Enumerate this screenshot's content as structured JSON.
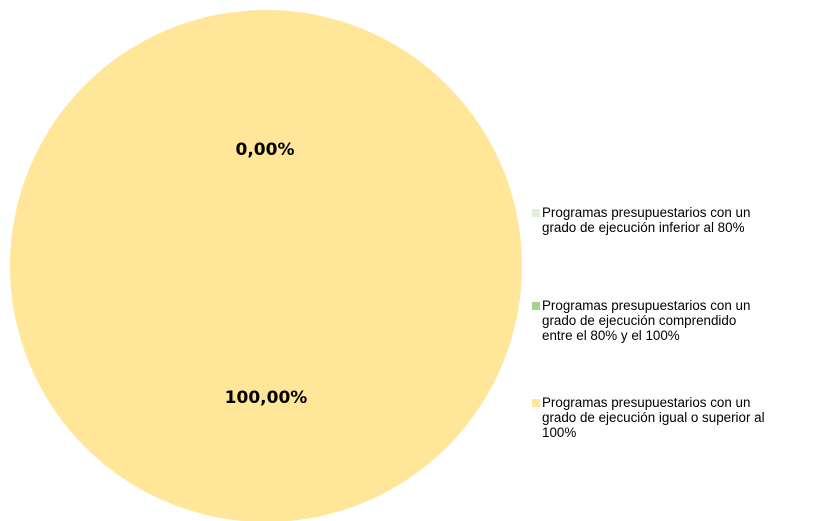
{
  "chart_data": {
    "type": "pie",
    "title": "",
    "slices": [
      {
        "label": "Programas presupuestarios con un\ngrado de ejecución inferior al 80%",
        "value": 0,
        "display": "",
        "color": "#e2efda"
      },
      {
        "label": "Programas presupuestarios con un\ngrado de ejecución comprendido\nentre el 80% y el 100%",
        "value": 0,
        "display": "0,00%",
        "color": "#a9d18e"
      },
      {
        "label": "Programas presupuestarios con un\ngrado de ejecución igual o superior al\n100%",
        "value": 100,
        "display": "100,00%",
        "color": "#ffe699"
      }
    ],
    "legend_position": "right"
  }
}
